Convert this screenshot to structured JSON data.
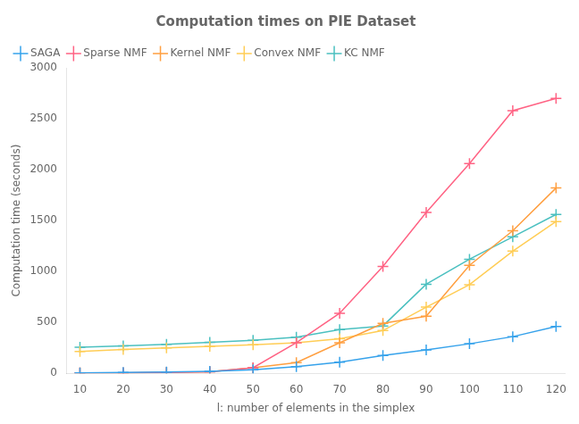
{
  "chart_data": {
    "type": "line",
    "title": "Computation times on PIE Dataset",
    "x_label": "l: number of elements in the simplex",
    "y_label": "Computation time (seconds)",
    "x": [
      10,
      20,
      30,
      40,
      50,
      60,
      70,
      80,
      90,
      100,
      110,
      120
    ],
    "series": [
      {
        "name": "SAGA",
        "values": [
          5,
          8,
          12,
          20,
          35,
          65,
          110,
          175,
          230,
          290,
          360,
          460
        ]
      },
      {
        "name": "Sparse NMF",
        "values": [
          3,
          5,
          8,
          15,
          55,
          300,
          590,
          1050,
          1580,
          2060,
          2580,
          2700
        ]
      },
      {
        "name": "Kernel NMF",
        "values": [
          3,
          5,
          8,
          15,
          55,
          105,
          300,
          490,
          560,
          1060,
          1400,
          1820
        ]
      },
      {
        "name": "Convex NMF",
        "values": [
          215,
          235,
          250,
          265,
          280,
          300,
          340,
          420,
          650,
          870,
          1200,
          1490
        ]
      },
      {
        "name": "KC NMF",
        "values": [
          255,
          270,
          285,
          305,
          325,
          355,
          430,
          465,
          875,
          1120,
          1340,
          1560
        ]
      }
    ],
    "xlim": [
      7,
      122
    ],
    "xticks": [
      10,
      20,
      30,
      40,
      50,
      60,
      70,
      80,
      90,
      100,
      110,
      120
    ],
    "ylim": [
      0,
      3000
    ],
    "yticks": [
      0,
      500,
      1000,
      1500,
      2000,
      2500,
      3000
    ],
    "grid": false,
    "legend": "upper left",
    "marker": "plus"
  }
}
